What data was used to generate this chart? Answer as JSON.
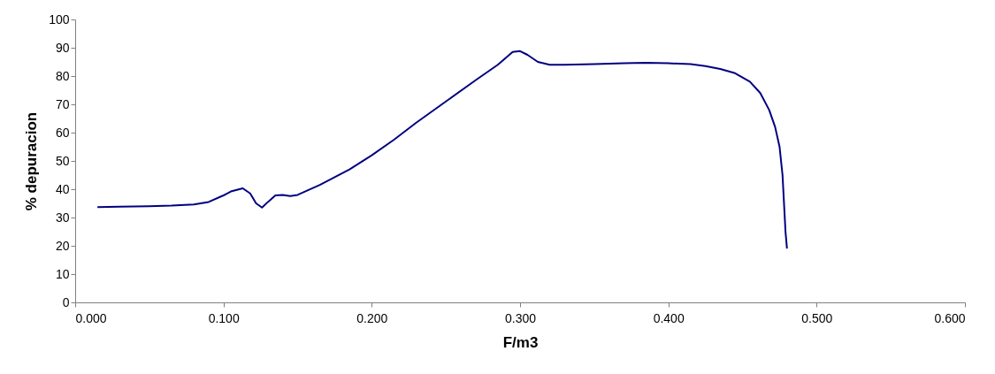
{
  "chart_data": {
    "type": "line",
    "xlabel": "F/m3",
    "ylabel": "% depuracion",
    "xlim": [
      0,
      0.6
    ],
    "xticks": [
      {
        "value": 0,
        "label": "0.000"
      },
      {
        "value": 0.1,
        "label": "0.100"
      },
      {
        "value": 0.2,
        "label": "0.200"
      },
      {
        "value": 0.3,
        "label": "0.300"
      },
      {
        "value": 0.4,
        "label": "0.400"
      },
      {
        "value": 0.5,
        "label": "0.500"
      },
      {
        "value": 0.6,
        "label": "0.600"
      }
    ],
    "ylim": [
      0,
      100
    ],
    "yticks": [
      0,
      10,
      20,
      30,
      40,
      50,
      60,
      70,
      80,
      90,
      100
    ],
    "grid": false,
    "marker": "none",
    "line_style": "solid",
    "series": [
      {
        "color": "#000080",
        "x": [
          0.015,
          0.03,
          0.05,
          0.065,
          0.08,
          0.09,
          0.1,
          0.105,
          0.113,
          0.118,
          0.122,
          0.126,
          0.13,
          0.135,
          0.14,
          0.145,
          0.15,
          0.165,
          0.185,
          0.2,
          0.215,
          0.23,
          0.25,
          0.27,
          0.285,
          0.295,
          0.3,
          0.305,
          0.312,
          0.32,
          0.33,
          0.35,
          0.37,
          0.385,
          0.4,
          0.415,
          0.425,
          0.435,
          0.445,
          0.455,
          0.462,
          0.468,
          0.472,
          0.475,
          0.477,
          0.478,
          0.479,
          0.48
        ],
        "values": [
          33.7,
          33.8,
          34,
          34.2,
          34.6,
          35.5,
          37.8,
          39.2,
          40.3,
          38.5,
          35,
          33.5,
          35.5,
          37.8,
          38,
          37.6,
          38,
          41.5,
          47,
          52,
          57.5,
          63.5,
          71,
          78.5,
          84,
          88.5,
          88.8,
          87.5,
          85,
          84,
          84,
          84.2,
          84.5,
          84.7,
          84.5,
          84.2,
          83.5,
          82.5,
          81,
          78,
          74,
          68,
          62,
          55,
          45,
          35,
          25,
          19
        ]
      }
    ]
  }
}
